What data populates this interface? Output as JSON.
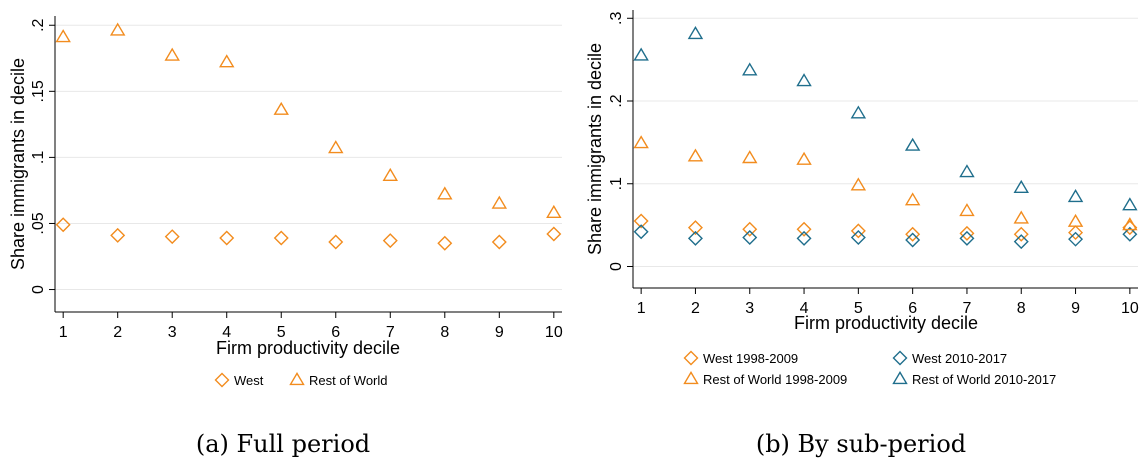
{
  "colors": {
    "orange": "#f28c1e",
    "teal": "#1f6e8c"
  },
  "chart_data": [
    {
      "type": "scatter",
      "caption": "(a) Full period",
      "xlabel": "Firm productivity decile",
      "ylabel": "Share immigrants in decile",
      "x": [
        1,
        2,
        3,
        4,
        5,
        6,
        7,
        8,
        9,
        10
      ],
      "xticks": [
        "1",
        "2",
        "3",
        "4",
        "5",
        "6",
        "7",
        "8",
        "9",
        "10"
      ],
      "xlim": [
        0.85,
        10.15
      ],
      "ylim": [
        -0.017,
        0.207
      ],
      "yticks": [
        0,
        0.05,
        0.1,
        0.15,
        0.2
      ],
      "ytick_labels": [
        "0",
        ".05",
        ".1",
        ".15",
        ".2"
      ],
      "grid": true,
      "legend_position": "bottom",
      "series": [
        {
          "name": "West",
          "marker": "diamond",
          "color": "orange",
          "values": [
            0.049,
            0.041,
            0.04,
            0.039,
            0.039,
            0.036,
            0.037,
            0.035,
            0.036,
            0.042
          ]
        },
        {
          "name": "Rest of World",
          "marker": "triangle",
          "color": "orange",
          "values": [
            0.191,
            0.196,
            0.177,
            0.172,
            0.136,
            0.107,
            0.086,
            0.072,
            0.065,
            0.058
          ]
        }
      ]
    },
    {
      "type": "scatter",
      "caption": "(b) By sub-period",
      "xlabel": "Firm productivity decile",
      "ylabel": "Share immigrants in decile",
      "x": [
        1,
        2,
        3,
        4,
        5,
        6,
        7,
        8,
        9,
        10
      ],
      "xticks": [
        "1",
        "2",
        "3",
        "4",
        "5",
        "6",
        "7",
        "8",
        "9",
        "10"
      ],
      "xlim": [
        0.85,
        10.15
      ],
      "ylim": [
        -0.026,
        0.31
      ],
      "yticks": [
        0,
        0.1,
        0.2,
        0.3
      ],
      "ytick_labels": [
        "0",
        ".1",
        ".2",
        ".3"
      ],
      "grid": true,
      "legend_position": "bottom",
      "series": [
        {
          "name": "West 1998-2009",
          "marker": "diamond",
          "color": "orange",
          "values": [
            0.055,
            0.047,
            0.045,
            0.045,
            0.043,
            0.039,
            0.04,
            0.039,
            0.041,
            0.047
          ]
        },
        {
          "name": "West 2010-2017",
          "marker": "diamond",
          "color": "teal",
          "values": [
            0.042,
            0.034,
            0.035,
            0.034,
            0.035,
            0.032,
            0.034,
            0.03,
            0.033,
            0.039
          ]
        },
        {
          "name": "Rest of World 1998-2009",
          "marker": "triangle",
          "color": "orange",
          "values": [
            0.149,
            0.133,
            0.131,
            0.129,
            0.098,
            0.08,
            0.067,
            0.058,
            0.054,
            0.05
          ]
        },
        {
          "name": "Rest of World 2010-2017",
          "marker": "triangle",
          "color": "teal",
          "values": [
            0.255,
            0.281,
            0.237,
            0.224,
            0.185,
            0.146,
            0.114,
            0.095,
            0.084,
            0.074
          ]
        }
      ]
    }
  ]
}
